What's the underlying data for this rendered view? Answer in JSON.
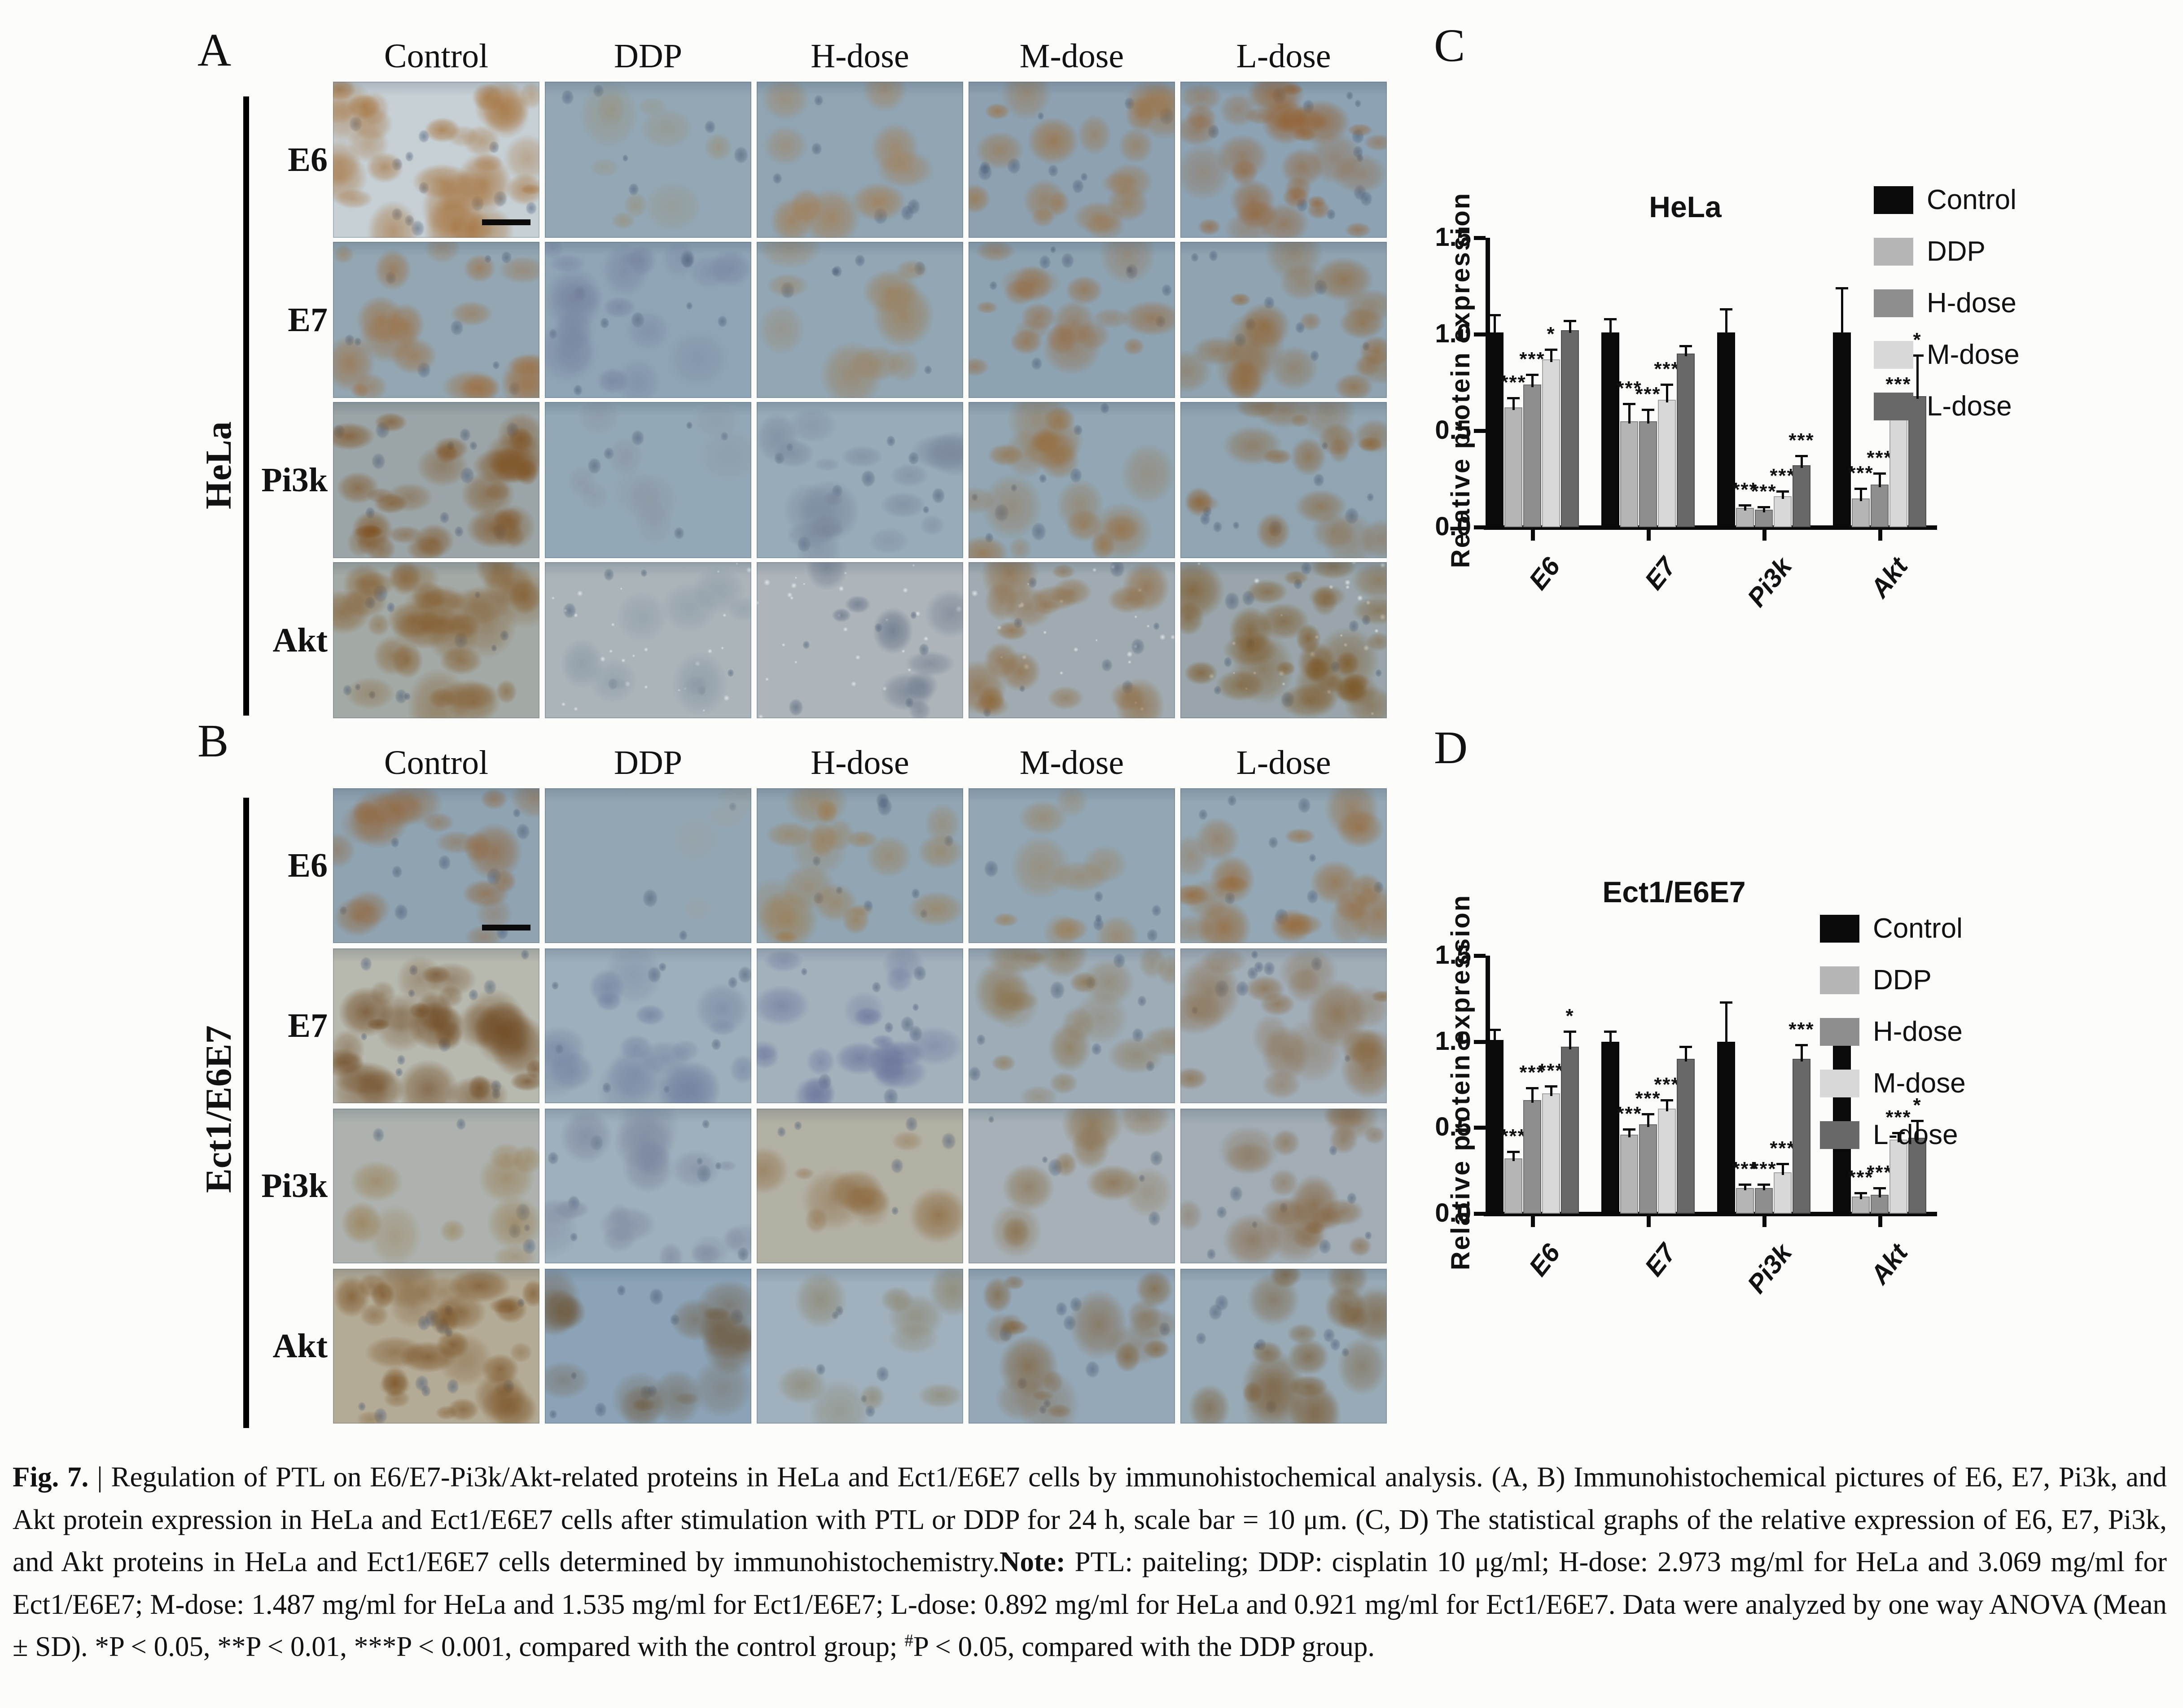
{
  "page": {
    "background": "#fcfcfb"
  },
  "figure": {
    "panel_a": {
      "label": "A",
      "side_label": "HeLa",
      "columns": [
        "Control",
        "DDP",
        "H-dose",
        "M-dose",
        "L-dose"
      ],
      "rows": [
        "E6",
        "E7",
        "Pi3k",
        "Akt"
      ],
      "tiles": [
        [
          {
            "d": 3,
            "base": "#c6cfd4",
            "stain": "#a5713a",
            "bar": true
          },
          {
            "d": 1,
            "base": "#93a7b5",
            "stain": "#97917b"
          },
          {
            "d": 1,
            "base": "#90a4b2",
            "stain": "#a4794a"
          },
          {
            "d": 2,
            "base": "#8da1b1",
            "stain": "#9d6d38"
          },
          {
            "d": 3,
            "base": "#8da2b2",
            "stain": "#955f2d"
          }
        ],
        [
          {
            "d": 2,
            "base": "#93a6b2",
            "stain": "#9c6c3c"
          },
          {
            "d": 2,
            "base": "#8fa5b6",
            "stain": "#76819e"
          },
          {
            "d": 1,
            "base": "#92a6b4",
            "stain": "#9b7a50"
          },
          {
            "d": 2,
            "base": "#8ea3b2",
            "stain": "#97693c"
          },
          {
            "d": 2,
            "base": "#8fa3b1",
            "stain": "#90622f"
          }
        ],
        [
          {
            "d": 3,
            "base": "#9ba4a6",
            "stain": "#7f5222"
          },
          {
            "d": 1,
            "base": "#93a8b6",
            "stain": "#8b93a0"
          },
          {
            "d": 2,
            "base": "#97abb8",
            "stain": "#77839a"
          },
          {
            "d": 2,
            "base": "#92a6b3",
            "stain": "#966b3a"
          },
          {
            "d": 2,
            "base": "#90a4b1",
            "stain": "#8c5f2e"
          }
        ],
        [
          {
            "d": 3,
            "base": "#a3a9a5",
            "stain": "#835a2a"
          },
          {
            "d": 1,
            "base": "#aab4b9",
            "stain": "#8c99a6",
            "sp": true
          },
          {
            "d": 1,
            "base": "#adb5ba",
            "stain": "#5e6b82",
            "sp": true
          },
          {
            "d": 2,
            "base": "#a0abb1",
            "stain": "#8d6434",
            "sp": true
          },
          {
            "d": 3,
            "base": "#99a5aa",
            "stain": "#7b531f",
            "sp": true
          }
        ]
      ]
    },
    "panel_b": {
      "label": "B",
      "side_label": "Ect1/E6E7",
      "columns": [
        "Control",
        "DDP",
        "H-dose",
        "M-dose",
        "L-dose"
      ],
      "rows": [
        "E6",
        "E7",
        "Pi3k",
        "Akt"
      ],
      "tiles": [
        [
          {
            "d": 2,
            "base": "#8fa3b1",
            "stain": "#92653a",
            "bar": true
          },
          {
            "d": 0,
            "base": "#93a6b3",
            "stain": "#9aa0a0"
          },
          {
            "d": 2,
            "base": "#91a5b3",
            "stain": "#9c7848"
          },
          {
            "d": 1,
            "base": "#92a6b4",
            "stain": "#9c7a4e"
          },
          {
            "d": 2,
            "base": "#94a7b4",
            "stain": "#96642f"
          }
        ],
        [
          {
            "d": 3,
            "base": "#b7b8ae",
            "stain": "#6e4820"
          },
          {
            "d": 2,
            "base": "#9eafbc",
            "stain": "#707e9e"
          },
          {
            "d": 2,
            "base": "#a3b1bd",
            "stain": "#68739a"
          },
          {
            "d": 2,
            "base": "#9dacb7",
            "stain": "#8b6f46"
          },
          {
            "d": 2,
            "base": "#a1adb7",
            "stain": "#87653c"
          }
        ],
        [
          {
            "d": 1,
            "base": "#adb2ae",
            "stain": "#97794a"
          },
          {
            "d": 2,
            "base": "#9fb0bc",
            "stain": "#7c87a0"
          },
          {
            "d": 1,
            "base": "#b2afa3",
            "stain": "#8a6538"
          },
          {
            "d": 1,
            "base": "#a6b0b6",
            "stain": "#88683e"
          },
          {
            "d": 2,
            "base": "#a1acb4",
            "stain": "#84613a"
          }
        ],
        [
          {
            "d": 3,
            "base": "#b4ab96",
            "stain": "#774e20"
          },
          {
            "d": 2,
            "base": "#8ca3b7",
            "stain": "#6f5c42"
          },
          {
            "d": 1,
            "base": "#a0b0bc",
            "stain": "#8a7f62"
          },
          {
            "d": 2,
            "base": "#95a8b8",
            "stain": "#7f5f36"
          },
          {
            "d": 2,
            "base": "#98aab6",
            "stain": "#7a5a32"
          }
        ]
      ]
    },
    "panel_c_label": "C",
    "panel_d_label": "D",
    "caption_segments": [
      {
        "style": "bold",
        "text": "Fig. 7."
      },
      {
        "style": "normal",
        "text": " | Regulation of PTL on E6/E7-Pi3k/Akt-related proteins in HeLa and Ect1/E6E7 cells by immunohistochemical analysis. (A, B) Immunohistochemical pictures of E6, E7, Pi3k, and Akt protein expression in HeLa and Ect1/E6E7 cells after stimulation with PTL or DDP for 24 h, scale bar = 10 μm. (C, D) The statistical graphs of the relative expression of E6, E7, Pi3k, and Akt proteins in HeLa and Ect1/E6E7 cells determined by immunohistochemistry."
      },
      {
        "style": "bold",
        "text": "Note:"
      },
      {
        "style": "normal",
        "text": " PTL: paiteling; DDP: cisplatin 10 μg/ml; H-dose: 2.973 mg/ml for HeLa and 3.069 mg/ml for Ect1/E6E7; M-dose: 1.487 mg/ml for HeLa and 1.535 mg/ml for Ect1/E6E7; L-dose: 0.892 mg/ml for HeLa and 0.921 mg/ml for Ect1/E6E7. Data were analyzed by one way ANOVA (Mean ± SD). *P < 0.05, **P < 0.01, ***P < 0.001, compared with the control group; "
      },
      {
        "style": "sup",
        "text": "#"
      },
      {
        "style": "normal",
        "text": "P < 0.05, compared with the DDP group."
      }
    ]
  },
  "chart_data": [
    {
      "type": "bar",
      "title": "HeLa",
      "panel_label": "C",
      "categories": [
        "E6",
        "E7",
        "Pi3k",
        "Akt"
      ],
      "series": [
        {
          "name": "Control",
          "color": "#0a0a0a",
          "values": [
            1.01,
            1.01,
            1.01,
            1.01
          ],
          "errors": [
            0.09,
            0.07,
            0.12,
            0.23
          ],
          "sig": [
            "",
            "",
            "",
            ""
          ]
        },
        {
          "name": "DDP",
          "color": "#b5b5b5",
          "values": [
            0.62,
            0.55,
            0.1,
            0.15
          ],
          "errors": [
            0.05,
            0.09,
            0.015,
            0.05
          ],
          "sig": [
            "***",
            "***",
            "***",
            "***"
          ]
        },
        {
          "name": "H-dose",
          "color": "#8e8e8e",
          "values": [
            0.74,
            0.55,
            0.09,
            0.22
          ],
          "errors": [
            0.05,
            0.06,
            0.015,
            0.06
          ],
          "sig": [
            "***",
            "***",
            "***",
            "***"
          ]
        },
        {
          "name": "M-dose",
          "color": "#d8d8d8",
          "values": [
            0.87,
            0.66,
            0.16,
            0.57
          ],
          "errors": [
            0.05,
            0.08,
            0.025,
            0.09
          ],
          "sig": [
            "*",
            "***",
            "***",
            "***"
          ]
        },
        {
          "name": "L-dose",
          "color": "#686868",
          "values": [
            1.02,
            0.9,
            0.32,
            0.68
          ],
          "errors": [
            0.05,
            0.04,
            0.05,
            0.21
          ],
          "sig": [
            "",
            "",
            "***",
            "*"
          ]
        }
      ],
      "xlabel": "",
      "ylabel": "Relative protein expression",
      "ylim": [
        0,
        1.5
      ],
      "yticks": [
        0,
        0.5,
        1.0,
        1.5
      ],
      "legend_position": "top-right",
      "grid": false
    },
    {
      "type": "bar",
      "title": "Ect1/E6E7",
      "panel_label": "D",
      "categories": [
        "E6",
        "E7",
        "Pi3k",
        "Akt"
      ],
      "series": [
        {
          "name": "Control",
          "color": "#0a0a0a",
          "values": [
            1.01,
            1.0,
            1.0,
            1.0
          ],
          "errors": [
            0.06,
            0.06,
            0.23,
            0.13
          ],
          "sig": [
            "",
            "",
            "",
            ""
          ]
        },
        {
          "name": "DDP",
          "color": "#b5b5b5",
          "values": [
            0.32,
            0.46,
            0.15,
            0.1
          ],
          "errors": [
            0.04,
            0.03,
            0.02,
            0.02
          ],
          "sig": [
            "***",
            "***",
            "***",
            "***"
          ]
        },
        {
          "name": "H-dose",
          "color": "#8e8e8e",
          "values": [
            0.66,
            0.52,
            0.15,
            0.11
          ],
          "errors": [
            0.07,
            0.06,
            0.02,
            0.04
          ],
          "sig": [
            "***",
            "***",
            "***",
            "***"
          ]
        },
        {
          "name": "M-dose",
          "color": "#d8d8d8",
          "values": [
            0.7,
            0.61,
            0.24,
            0.43
          ],
          "errors": [
            0.04,
            0.05,
            0.05,
            0.04
          ],
          "sig": [
            "***",
            "***",
            "***",
            "***"
          ]
        },
        {
          "name": "L-dose",
          "color": "#686868",
          "values": [
            0.97,
            0.9,
            0.9,
            0.44
          ],
          "errors": [
            0.09,
            0.07,
            0.08,
            0.1
          ],
          "sig": [
            "*",
            "",
            "***",
            "*"
          ]
        }
      ],
      "xlabel": "",
      "ylabel": "Relative protein expression",
      "ylim": [
        0,
        1.5
      ],
      "yticks": [
        0,
        0.5,
        1.0,
        1.5
      ],
      "legend_position": "top-right",
      "grid": false
    }
  ]
}
